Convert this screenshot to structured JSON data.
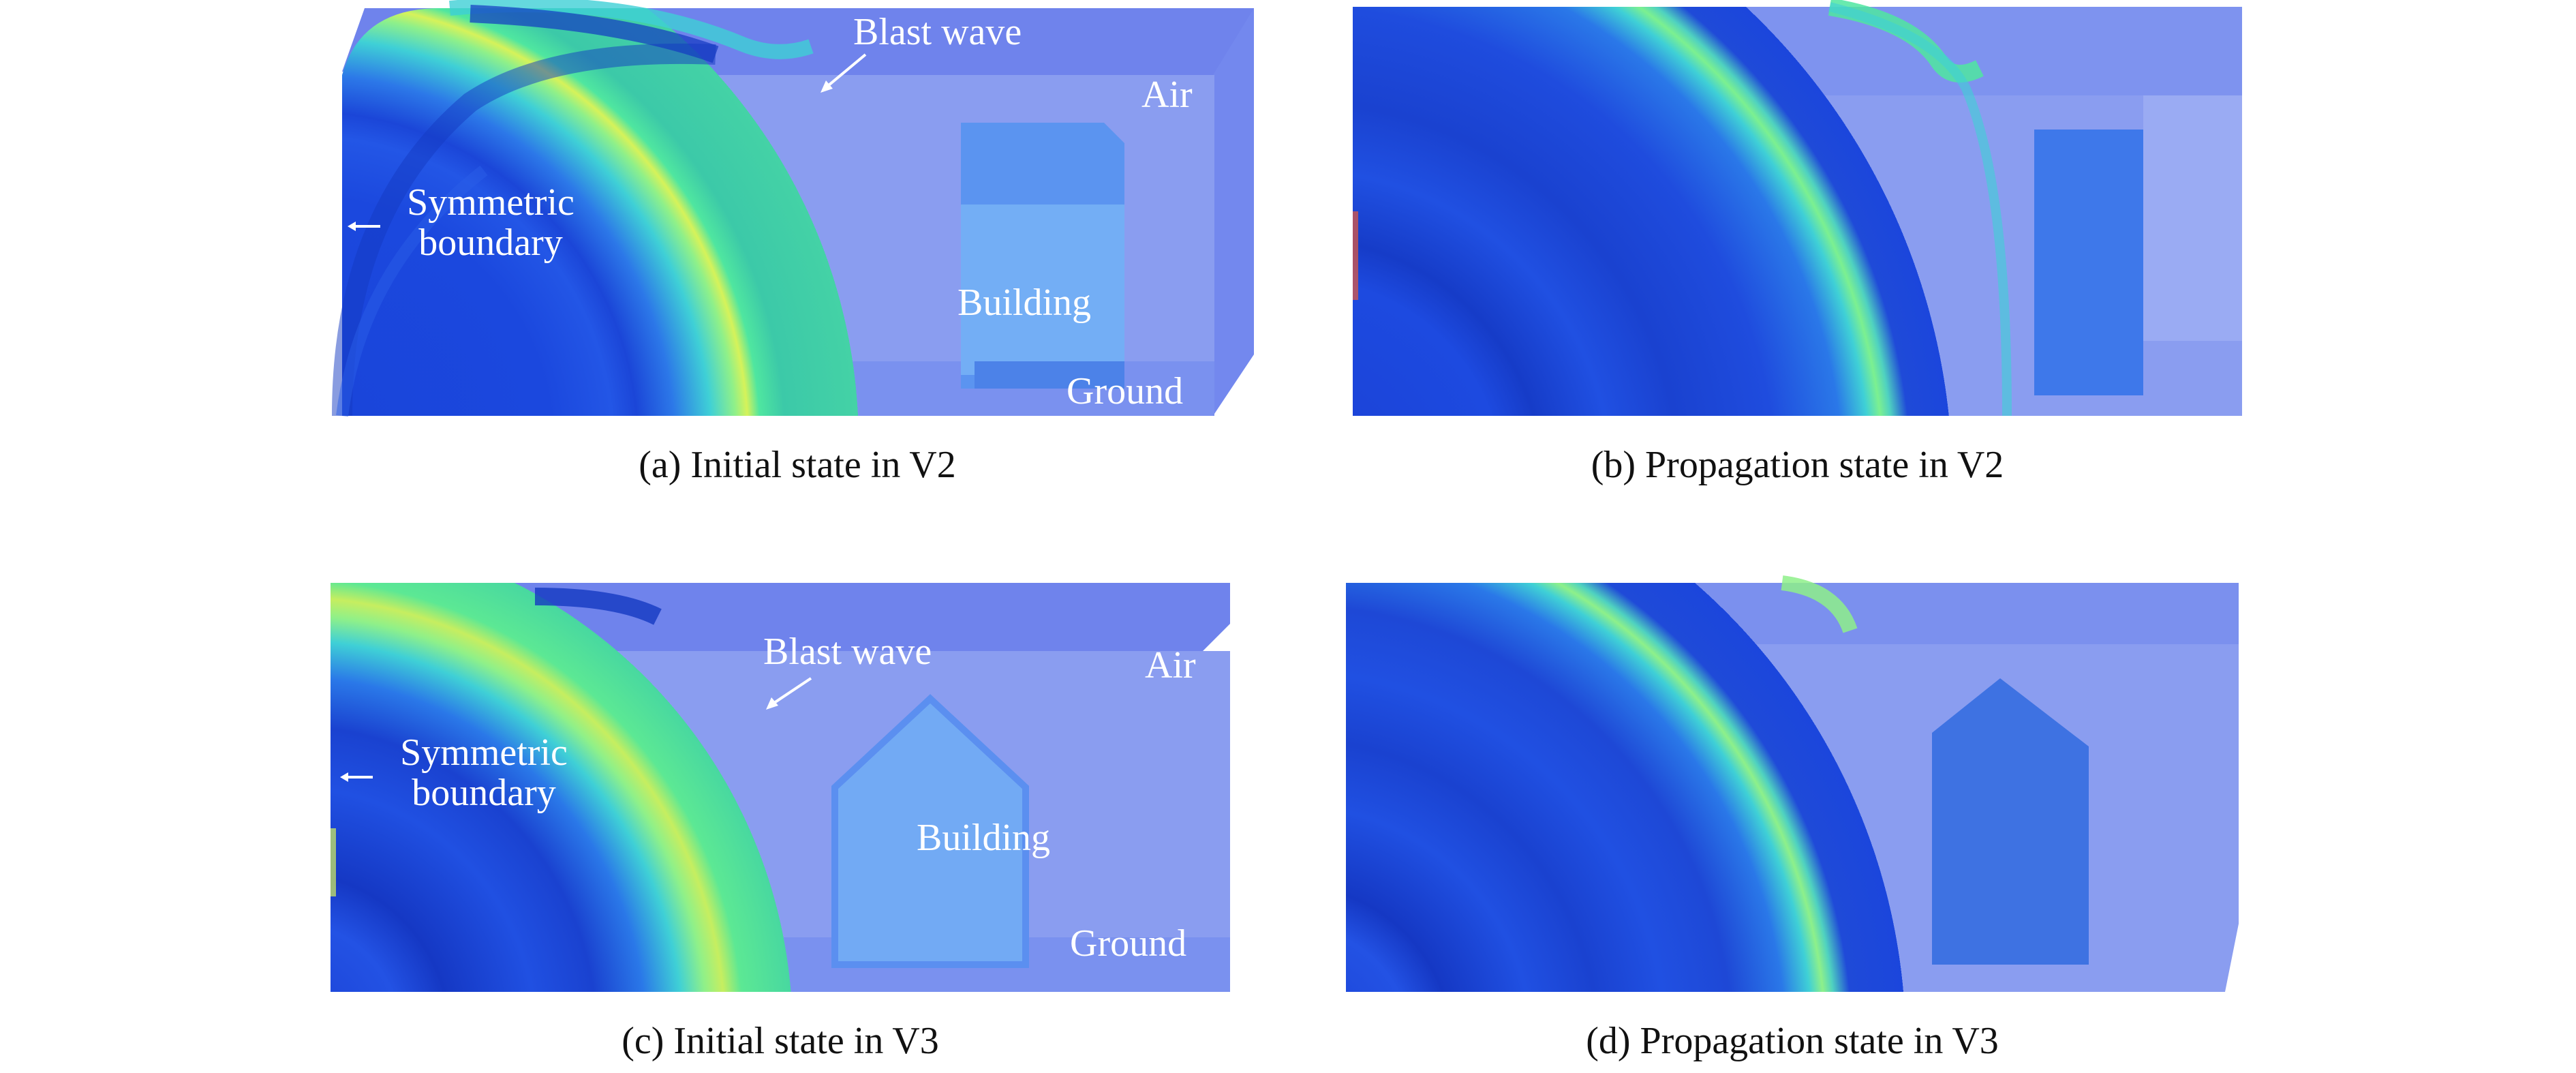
{
  "figure": {
    "panels": [
      {
        "id": "a",
        "caption": "(a) Initial state in V2",
        "labels": {
          "blast_wave": "Blast wave",
          "air": "Air",
          "symmetric_boundary": "Symmetric\nboundary",
          "building": "Building",
          "ground": "Ground"
        }
      },
      {
        "id": "b",
        "caption": "(b) Propagation state in V2"
      },
      {
        "id": "c",
        "caption": "(c) Initial state in V3",
        "labels": {
          "blast_wave": "Blast wave",
          "air": "Air",
          "symmetric_boundary": "Symmetric\nboundary",
          "building": "Building",
          "ground": "Ground"
        }
      },
      {
        "id": "d",
        "caption": "(d) Propagation state in V3"
      }
    ],
    "colors": {
      "field_blue": "#1e4fe6",
      "deep_blue": "#1439c2",
      "air_box": "#8a9df0",
      "air_top": "#6f83ec",
      "building": "#6aa6f2",
      "wave_green": "#5ef28a",
      "wave_cyan": "#3fd6d8",
      "wave_yellow": "#d6f25a"
    }
  }
}
